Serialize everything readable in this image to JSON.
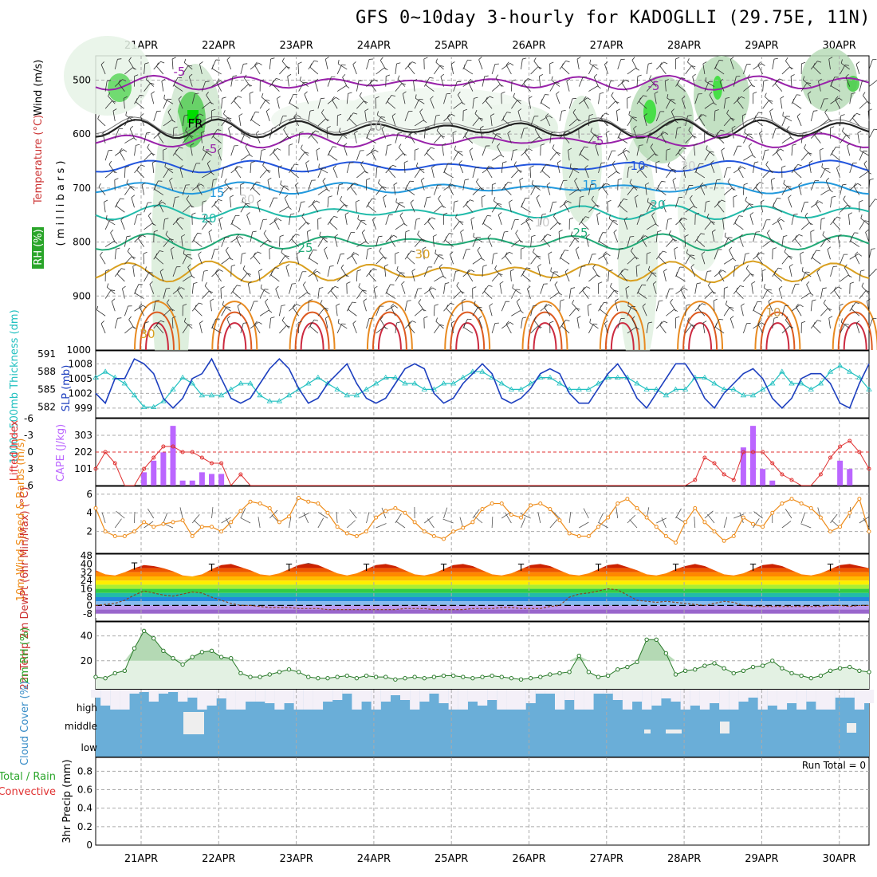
{
  "title": "GFS 0~10day 3-hourly for KADOGLLI (29.75E, 11N)",
  "dates": [
    "21APR",
    "22APR",
    "23APR",
    "24APR",
    "25APR",
    "26APR",
    "27APR",
    "28APR",
    "29APR",
    "30APR"
  ],
  "colors": {
    "rh": "#2aa52a",
    "thick": "#20c0c0",
    "slp": "#1d3fbf",
    "cape": "#bb66ff",
    "li": "#e03030",
    "wind": "#ee8c1a",
    "temp": "#cc3333",
    "cloud": "#6aaed8",
    "precip": "#00aa00"
  },
  "chart_data": [
    {
      "type": "contour",
      "name": "upper-air",
      "ylabel_rh": "RH (%)",
      "ylabel_temp": "Temperature (°C)",
      "ylabel_wind": "Wind (m/s)",
      "ylabel_axis": "( m i l l i b a r s )",
      "yticks": [
        "500",
        "600",
        "700",
        "800",
        "900",
        "1000"
      ],
      "labels": [
        "-5",
        "-5",
        "-5",
        "-5",
        "10",
        "15",
        "15",
        "20",
        "20",
        "25",
        "25",
        "30",
        "30",
        "10",
        "30",
        "10",
        "30",
        "10",
        "FR"
      ]
    },
    {
      "type": "line",
      "name": "thickness-slp",
      "ylabel_left": "1000~500mb Thickness (dm)",
      "ylabel_right": "SLP (mb)",
      "yticks_left": [
        "591",
        "588",
        "585",
        "582"
      ],
      "yticks_right": [
        "1008",
        "1005",
        "1002",
        "999"
      ],
      "series": [
        {
          "name": "SLP",
          "values": [
            1002,
            1000,
            1005,
            1005,
            1009,
            1008,
            1006,
            1001,
            999,
            1001,
            1005,
            1006,
            1009,
            1005,
            1001,
            1000,
            1001,
            1004,
            1007,
            1009,
            1007,
            1003,
            1000,
            1001,
            1004,
            1006,
            1008,
            1004,
            1001,
            1000,
            1001,
            1004,
            1007,
            1008,
            1007,
            1002,
            1000,
            1001,
            1004,
            1006,
            1008,
            1006,
            1001,
            1000,
            1001,
            1003,
            1006,
            1007,
            1006,
            1002,
            1000,
            1000,
            1003,
            1006,
            1008,
            1005,
            1001,
            999,
            1002,
            1005,
            1008,
            1008,
            1005,
            1001,
            999,
            1002,
            1004,
            1006,
            1007,
            1005,
            1001,
            999,
            1001,
            1005,
            1006,
            1006,
            1004,
            1000,
            999,
            1004,
            1008
          ]
        },
        {
          "name": "Thickness",
          "values": [
            587,
            588,
            587,
            586,
            584,
            582,
            582,
            583,
            585,
            587,
            586,
            584,
            584,
            584,
            585,
            586,
            586,
            584,
            583,
            583,
            584,
            585,
            586,
            587,
            586,
            585,
            584,
            584,
            585,
            586,
            587,
            587,
            586,
            586,
            585,
            585,
            586,
            586,
            587,
            588,
            588,
            587,
            586,
            585,
            585,
            586,
            587,
            587,
            586,
            585,
            585,
            585,
            586,
            587,
            587,
            587,
            586,
            585,
            585,
            584,
            585,
            585,
            587,
            587,
            586,
            585,
            585,
            584,
            584,
            585,
            586,
            588,
            586,
            586,
            585,
            586,
            588,
            589,
            588,
            587,
            585
          ]
        }
      ]
    },
    {
      "type": "bar+line",
      "name": "cape-li",
      "ylabel_left": "Lifted Index",
      "ylabel_right": "CAPE (J/kg)",
      "yticks_left": [
        "-6",
        "-3",
        "0",
        "3",
        "6"
      ],
      "yticks_right": [
        "303",
        "202",
        "101"
      ],
      "cape": [
        0,
        0,
        0,
        0,
        0,
        80,
        150,
        200,
        360,
        30,
        30,
        80,
        70,
        70,
        0,
        0,
        0,
        0,
        0,
        0,
        0,
        0,
        0,
        0,
        0,
        0,
        0,
        0,
        0,
        0,
        0,
        0,
        0,
        0,
        0,
        0,
        0,
        0,
        0,
        0,
        0,
        0,
        0,
        0,
        0,
        0,
        0,
        0,
        0,
        0,
        0,
        0,
        0,
        0,
        0,
        0,
        0,
        0,
        0,
        0,
        0,
        0,
        0,
        0,
        0,
        0,
        0,
        230,
        360,
        100,
        30,
        0,
        0,
        0,
        0,
        0,
        0,
        150,
        100,
        0,
        0
      ],
      "lifted_index": [
        3,
        0,
        2,
        6,
        6,
        3,
        1,
        -1,
        -1,
        0,
        0,
        1,
        2,
        2,
        6,
        4,
        6,
        6,
        6,
        6,
        6,
        6,
        6,
        6,
        6,
        6,
        6,
        6,
        6,
        6,
        6,
        6,
        6,
        6,
        6,
        6,
        6,
        6,
        6,
        6,
        6,
        6,
        6,
        6,
        6,
        6,
        6,
        6,
        6,
        6,
        6,
        6,
        6,
        6,
        6,
        6,
        6,
        6,
        6,
        6,
        6,
        6,
        5,
        1,
        2,
        4,
        5,
        0,
        0,
        0,
        2,
        4,
        5,
        6,
        6,
        4,
        1,
        -1,
        -2,
        0,
        3
      ]
    },
    {
      "type": "line",
      "name": "wind10m",
      "ylabel": "10m Wind Speed & Barbs (m/s)",
      "yticks": [
        "6",
        "4",
        "2"
      ],
      "values": [
        4.5,
        2,
        1.5,
        1.5,
        2,
        3,
        2.5,
        2.8,
        3,
        3.2,
        1.5,
        2.5,
        2.5,
        2,
        3,
        4.2,
        5.2,
        5,
        4.5,
        3,
        3.6,
        5.6,
        5.2,
        5,
        4,
        2.5,
        1.8,
        1.5,
        2,
        3.5,
        4.2,
        4.5,
        4,
        3,
        2,
        1.5,
        1.2,
        2,
        2.4,
        3,
        4.4,
        5,
        5,
        3.8,
        3.5,
        4.8,
        5,
        4.4,
        3.2,
        1.8,
        1.5,
        1.5,
        2.5,
        3.5,
        5,
        5.5,
        4.5,
        3.5,
        2.5,
        1.5,
        0.8,
        3,
        4.5,
        3,
        2,
        1,
        1.5,
        3.5,
        2.8,
        2.5,
        4,
        5,
        5.5,
        5,
        4.5,
        3.5,
        2,
        2.5,
        4,
        5.5,
        2
      ]
    },
    {
      "type": "band+line",
      "name": "temp2m",
      "ylabel": "2m Temp 2m DewPt (6hr Min/Max) (°C)",
      "yticks": [
        "48",
        "40",
        "32",
        "24",
        "16",
        "8",
        "0",
        "-8"
      ],
      "temp": [
        34,
        30,
        29,
        32,
        36,
        39,
        38,
        36,
        33,
        29,
        28,
        30,
        35,
        39,
        40,
        37,
        34,
        30,
        29,
        31,
        35,
        39,
        41,
        39,
        35,
        31,
        29,
        31,
        35,
        39,
        40,
        38,
        34,
        30,
        29,
        31,
        35,
        39,
        40,
        38,
        34,
        30,
        29,
        31,
        35,
        39,
        40,
        38,
        34,
        30,
        29,
        31,
        35,
        39,
        40,
        37,
        34,
        30,
        29,
        31,
        35,
        38,
        40,
        38,
        34,
        30,
        29,
        31,
        35,
        39,
        40,
        38,
        34,
        30,
        29,
        31,
        35,
        39,
        40,
        38,
        36
      ],
      "dewpt": [
        0,
        1,
        2,
        5,
        10,
        14,
        12,
        10,
        9,
        11,
        13,
        12,
        8,
        5,
        2,
        0,
        0,
        -1,
        -2,
        -2,
        -2,
        -3,
        -3,
        -3,
        -4,
        -4,
        -4,
        -4,
        -4,
        -4,
        -4,
        -4,
        -3,
        -3,
        -3,
        -4,
        -4,
        -4,
        -4,
        -3,
        -3,
        -3,
        -2,
        -2,
        -3,
        -3,
        -3,
        -1,
        0,
        8,
        11,
        12,
        14,
        16,
        15,
        10,
        5,
        4,
        3,
        4,
        3,
        2,
        1,
        0,
        2,
        4,
        3,
        0,
        -1,
        -1,
        -1,
        -1,
        -1,
        -1,
        -1,
        -1,
        0,
        0,
        -1,
        0,
        0
      ]
    },
    {
      "type": "area",
      "name": "rh2m",
      "ylabel": "2m RH (%)",
      "yticks": [
        "40",
        "20"
      ],
      "values": [
        7,
        6,
        10,
        12,
        30,
        44,
        38,
        28,
        22,
        17,
        23,
        27,
        28,
        23,
        22,
        10,
        7,
        7,
        9,
        11,
        13,
        11,
        7,
        6,
        6,
        7,
        8,
        6,
        8,
        7,
        7,
        5,
        6,
        7,
        6,
        7,
        8,
        8,
        7,
        6,
        7,
        8,
        7,
        6,
        5,
        6,
        7,
        9,
        10,
        11,
        24,
        11,
        7,
        8,
        13,
        15,
        19,
        37,
        37,
        26,
        9,
        12,
        13,
        16,
        18,
        14,
        10,
        12,
        15,
        16,
        20,
        14,
        10,
        8,
        6,
        8,
        12,
        14,
        15,
        12,
        11
      ]
    },
    {
      "type": "heatmap",
      "name": "cloud",
      "ylabel": "Cloud Cover (%)",
      "levels": [
        "high",
        "middle",
        "low"
      ]
    },
    {
      "type": "bar",
      "name": "precip",
      "ylabel_left": "Total / Rain",
      "ylabel_left2": "Convective",
      "ylabel": "3hr Precip (mm)",
      "yticks": [
        "0.8",
        "0.6",
        "0.4",
        "0.2",
        "0"
      ],
      "run_total": "Run Total = 0",
      "values": []
    }
  ]
}
